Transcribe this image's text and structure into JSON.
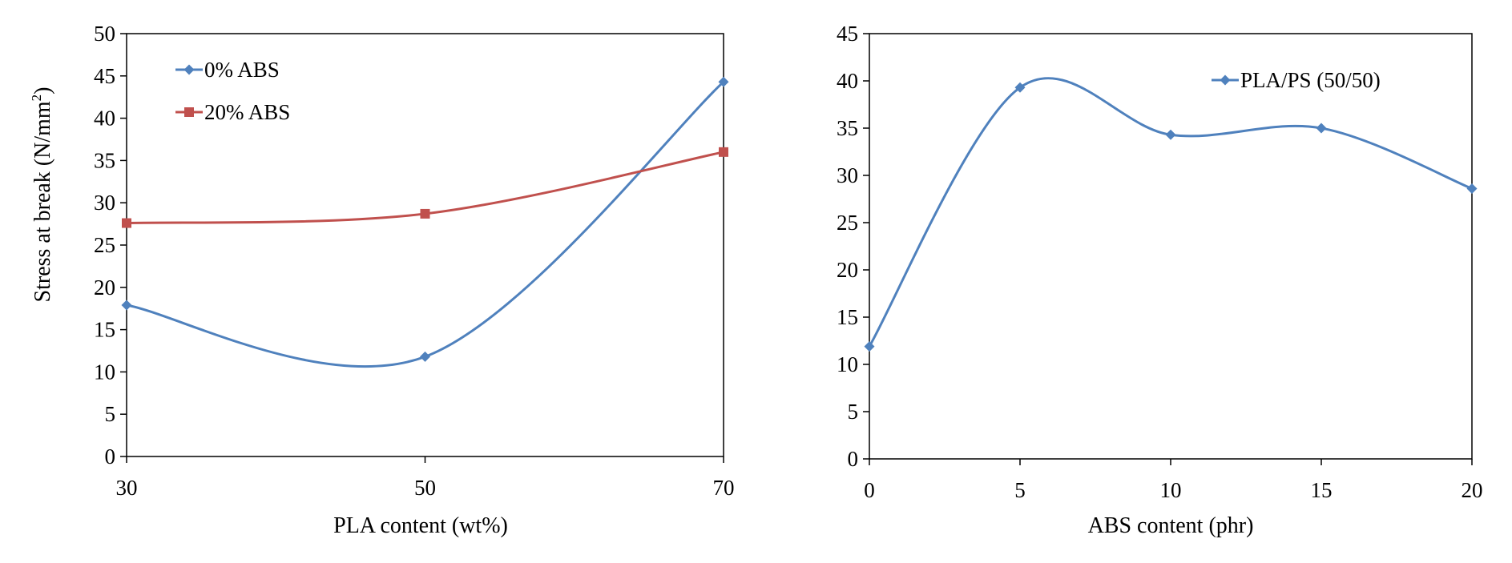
{
  "chart_data": [
    {
      "type": "line",
      "smooth": true,
      "title": "",
      "xlabel": "PLA content (wt%)",
      "ylabel_main": "Stress at break (N/mm",
      "ylabel_sup": "2",
      "ylabel_close": ")",
      "xlim": [
        30,
        70
      ],
      "ylim": [
        0,
        50
      ],
      "x_ticks": [
        "30",
        "50",
        "70"
      ],
      "y_ticks": [
        "0",
        "5",
        "10",
        "15",
        "20",
        "25",
        "30",
        "35",
        "40",
        "45",
        "50"
      ],
      "grid": false,
      "legend_position": "top-left",
      "x": [
        30,
        50,
        70
      ],
      "series": [
        {
          "name": "0% ABS",
          "values": [
            17.9,
            11.8,
            44.3
          ],
          "color": "#4f81bd",
          "marker": "diamond"
        },
        {
          "name": "20% ABS",
          "values": [
            27.6,
            28.7,
            36.0
          ],
          "color": "#c0504d",
          "marker": "square"
        }
      ]
    },
    {
      "type": "line",
      "smooth": true,
      "title": "",
      "xlabel": "ABS content (phr)",
      "xlim": [
        0,
        20
      ],
      "ylim": [
        0,
        45
      ],
      "x_ticks": [
        "0",
        "5",
        "10",
        "15",
        "20"
      ],
      "y_ticks": [
        "0",
        "5",
        "10",
        "15",
        "20",
        "25",
        "30",
        "35",
        "40",
        "45"
      ],
      "grid": false,
      "legend_position": "top-right",
      "x": [
        0,
        5,
        10,
        15,
        20
      ],
      "series": [
        {
          "name": "PLA/PS (50/50)",
          "values": [
            11.9,
            39.3,
            34.3,
            35.0,
            28.6
          ],
          "color": "#4f81bd",
          "marker": "diamond"
        }
      ]
    }
  ]
}
